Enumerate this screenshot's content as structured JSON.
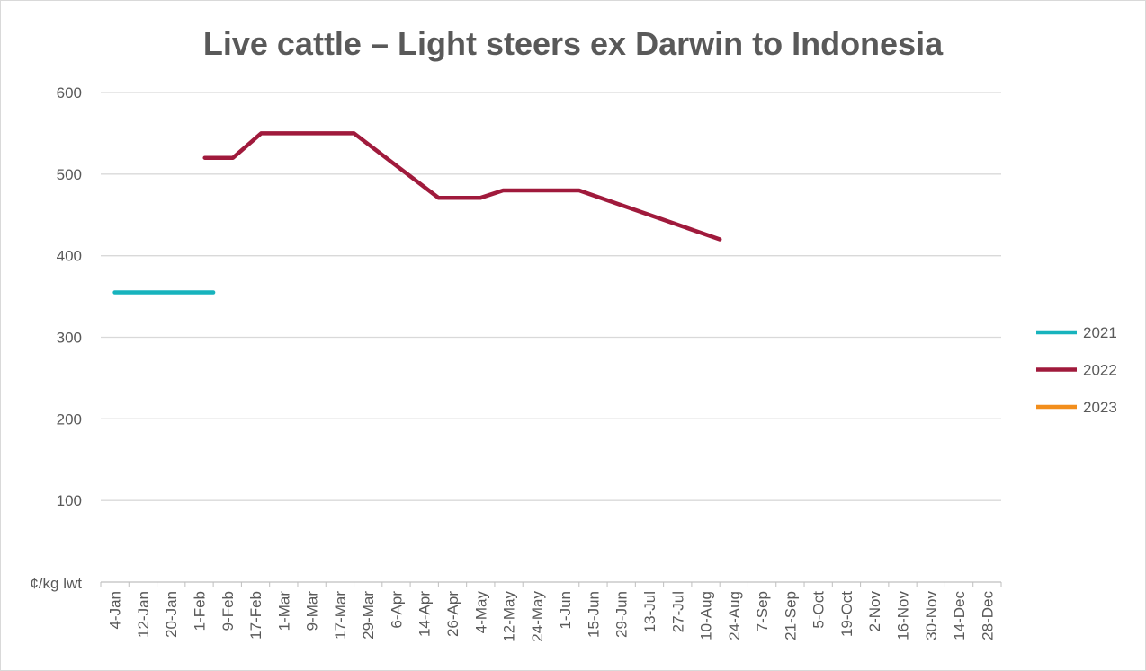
{
  "chart_data": {
    "type": "line",
    "title": "Live cattle – Light steers ex Darwin to Indonesia",
    "ylabel": "¢/kg lwt",
    "xlabel": "",
    "ylim": [
      0,
      600
    ],
    "yticks": [
      100,
      200,
      300,
      400,
      500,
      600
    ],
    "grid": true,
    "legend_position": "right",
    "categories": [
      "4-Jan",
      "12-Jan",
      "20-Jan",
      "1-Feb",
      "9-Feb",
      "17-Feb",
      "1-Mar",
      "9-Mar",
      "17-Mar",
      "29-Mar",
      "6-Apr",
      "14-Apr",
      "26-Apr",
      "4-May",
      "12-May",
      "24-May",
      "1-Jun",
      "15-Jun",
      "29-Jun",
      "13-Jul",
      "27-Jul",
      "10-Aug",
      "24-Aug",
      "7-Sep",
      "21-Sep",
      "5-Oct",
      "19-Oct",
      "2-Nov",
      "16-Nov",
      "30-Nov",
      "14-Dec",
      "28-Dec"
    ],
    "series": [
      {
        "name": "2021",
        "color": "#17b3bd",
        "points": [
          [
            0,
            355
          ],
          [
            3.5,
            355
          ]
        ]
      },
      {
        "name": "2022",
        "color": "#a01a3c",
        "points": [
          [
            3.2,
            520
          ],
          [
            4.2,
            520
          ],
          [
            5.2,
            550
          ],
          [
            8.5,
            550
          ],
          [
            11.5,
            471
          ],
          [
            13,
            471
          ],
          [
            13.8,
            480
          ],
          [
            16.5,
            480
          ],
          [
            21.5,
            420
          ]
        ]
      },
      {
        "name": "2023",
        "color": "#f28e1c",
        "points": []
      }
    ]
  }
}
